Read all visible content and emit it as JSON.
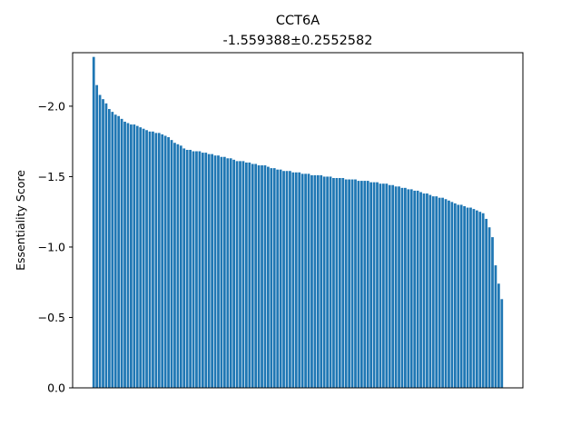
{
  "chart_data": {
    "type": "bar",
    "title": "CCT6A",
    "subtitle": "-1.559388±0.2552582",
    "xlabel": "",
    "ylabel": "Essentiality Score",
    "y_axis_inverted": true,
    "ylim": [
      0,
      -2.38
    ],
    "yticks": [
      0.0,
      -0.5,
      -1.0,
      -1.5,
      -2.0
    ],
    "ytick_labels": [
      "0.0",
      "−0.5",
      "−1.0",
      "−1.5",
      "−2.0"
    ],
    "x_ticks_shown": false,
    "grid": false,
    "bar_color": "#1f77b4",
    "values": [
      -2.35,
      -2.15,
      -2.08,
      -2.05,
      -2.02,
      -1.98,
      -1.96,
      -1.94,
      -1.93,
      -1.91,
      -1.89,
      -1.88,
      -1.87,
      -1.87,
      -1.86,
      -1.85,
      -1.84,
      -1.83,
      -1.82,
      -1.82,
      -1.81,
      -1.81,
      -1.8,
      -1.79,
      -1.78,
      -1.76,
      -1.74,
      -1.73,
      -1.72,
      -1.7,
      -1.69,
      -1.69,
      -1.68,
      -1.68,
      -1.68,
      -1.67,
      -1.67,
      -1.66,
      -1.66,
      -1.65,
      -1.65,
      -1.64,
      -1.64,
      -1.63,
      -1.63,
      -1.62,
      -1.61,
      -1.61,
      -1.61,
      -1.6,
      -1.6,
      -1.59,
      -1.59,
      -1.58,
      -1.58,
      -1.58,
      -1.57,
      -1.56,
      -1.56,
      -1.55,
      -1.55,
      -1.54,
      -1.54,
      -1.54,
      -1.53,
      -1.53,
      -1.53,
      -1.52,
      -1.52,
      -1.52,
      -1.51,
      -1.51,
      -1.51,
      -1.51,
      -1.5,
      -1.5,
      -1.5,
      -1.49,
      -1.49,
      -1.49,
      -1.49,
      -1.48,
      -1.48,
      -1.48,
      -1.48,
      -1.47,
      -1.47,
      -1.47,
      -1.47,
      -1.46,
      -1.46,
      -1.46,
      -1.45,
      -1.45,
      -1.45,
      -1.44,
      -1.44,
      -1.43,
      -1.43,
      -1.42,
      -1.42,
      -1.41,
      -1.41,
      -1.4,
      -1.4,
      -1.39,
      -1.38,
      -1.38,
      -1.37,
      -1.36,
      -1.36,
      -1.35,
      -1.35,
      -1.34,
      -1.33,
      -1.32,
      -1.31,
      -1.3,
      -1.3,
      -1.29,
      -1.28,
      -1.28,
      -1.27,
      -1.26,
      -1.25,
      -1.24,
      -1.2,
      -1.14,
      -1.07,
      -0.87,
      -0.74,
      -0.63
    ]
  }
}
